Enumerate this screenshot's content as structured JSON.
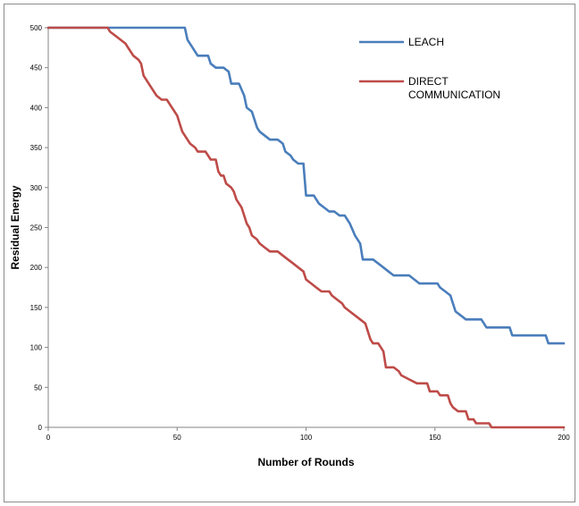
{
  "chart_data": {
    "type": "line",
    "title": "",
    "xlabel": "Number of Rounds",
    "ylabel": "Residual Energy",
    "xlim": [
      0,
      200
    ],
    "ylim": [
      0,
      500
    ],
    "xticks": [
      0,
      50,
      100,
      150,
      200
    ],
    "yticks": [
      0,
      50,
      100,
      150,
      200,
      250,
      300,
      350,
      400,
      450,
      500
    ],
    "grid": false,
    "legend_position": "top-right",
    "series": [
      {
        "name": "LEACH",
        "color": "#4a7ebb",
        "points": [
          [
            0,
            500
          ],
          [
            53,
            500
          ],
          [
            54,
            485
          ],
          [
            56,
            475
          ],
          [
            58,
            465
          ],
          [
            62,
            465
          ],
          [
            63,
            455
          ],
          [
            65,
            450
          ],
          [
            68,
            450
          ],
          [
            70,
            445
          ],
          [
            71,
            430
          ],
          [
            74,
            430
          ],
          [
            76,
            415
          ],
          [
            77,
            400
          ],
          [
            79,
            395
          ],
          [
            80,
            385
          ],
          [
            81,
            375
          ],
          [
            82,
            370
          ],
          [
            84,
            365
          ],
          [
            86,
            360
          ],
          [
            89,
            360
          ],
          [
            91,
            355
          ],
          [
            92,
            345
          ],
          [
            94,
            340
          ],
          [
            95,
            335
          ],
          [
            97,
            330
          ],
          [
            99,
            330
          ],
          [
            100,
            290
          ],
          [
            103,
            290
          ],
          [
            105,
            280
          ],
          [
            107,
            275
          ],
          [
            109,
            270
          ],
          [
            111,
            270
          ],
          [
            113,
            265
          ],
          [
            115,
            265
          ],
          [
            117,
            255
          ],
          [
            119,
            240
          ],
          [
            121,
            230
          ],
          [
            122,
            210
          ],
          [
            126,
            210
          ],
          [
            128,
            205
          ],
          [
            130,
            200
          ],
          [
            132,
            195
          ],
          [
            134,
            190
          ],
          [
            140,
            190
          ],
          [
            142,
            185
          ],
          [
            144,
            180
          ],
          [
            151,
            180
          ],
          [
            152,
            175
          ],
          [
            154,
            170
          ],
          [
            156,
            165
          ],
          [
            157,
            155
          ],
          [
            158,
            145
          ],
          [
            160,
            140
          ],
          [
            162,
            135
          ],
          [
            168,
            135
          ],
          [
            169,
            130
          ],
          [
            170,
            125
          ],
          [
            179,
            125
          ],
          [
            180,
            115
          ],
          [
            193,
            115
          ],
          [
            194,
            105
          ],
          [
            200,
            105
          ]
        ]
      },
      {
        "name": "DIRECT COMMUNICATION",
        "color": "#be4b48",
        "points": [
          [
            0,
            500
          ],
          [
            23,
            500
          ],
          [
            24,
            495
          ],
          [
            26,
            490
          ],
          [
            28,
            485
          ],
          [
            30,
            480
          ],
          [
            31,
            475
          ],
          [
            32,
            470
          ],
          [
            33,
            465
          ],
          [
            35,
            460
          ],
          [
            36,
            455
          ],
          [
            37,
            440
          ],
          [
            39,
            430
          ],
          [
            40,
            425
          ],
          [
            42,
            415
          ],
          [
            44,
            410
          ],
          [
            46,
            410
          ],
          [
            48,
            400
          ],
          [
            50,
            390
          ],
          [
            51,
            380
          ],
          [
            52,
            370
          ],
          [
            53,
            365
          ],
          [
            54,
            360
          ],
          [
            55,
            355
          ],
          [
            57,
            350
          ],
          [
            58,
            345
          ],
          [
            61,
            345
          ],
          [
            62,
            340
          ],
          [
            63,
            335
          ],
          [
            65,
            335
          ],
          [
            66,
            320
          ],
          [
            67,
            315
          ],
          [
            68,
            315
          ],
          [
            69,
            305
          ],
          [
            71,
            300
          ],
          [
            72,
            295
          ],
          [
            73,
            285
          ],
          [
            74,
            280
          ],
          [
            75,
            275
          ],
          [
            76,
            265
          ],
          [
            77,
            255
          ],
          [
            78,
            250
          ],
          [
            79,
            240
          ],
          [
            81,
            235
          ],
          [
            82,
            230
          ],
          [
            84,
            225
          ],
          [
            86,
            220
          ],
          [
            89,
            220
          ],
          [
            91,
            215
          ],
          [
            93,
            210
          ],
          [
            95,
            205
          ],
          [
            97,
            200
          ],
          [
            99,
            195
          ],
          [
            100,
            185
          ],
          [
            102,
            180
          ],
          [
            104,
            175
          ],
          [
            106,
            170
          ],
          [
            109,
            170
          ],
          [
            110,
            165
          ],
          [
            112,
            160
          ],
          [
            114,
            155
          ],
          [
            115,
            150
          ],
          [
            117,
            145
          ],
          [
            119,
            140
          ],
          [
            121,
            135
          ],
          [
            123,
            130
          ],
          [
            124,
            120
          ],
          [
            125,
            110
          ],
          [
            126,
            105
          ],
          [
            128,
            105
          ],
          [
            129,
            100
          ],
          [
            130,
            95
          ],
          [
            131,
            75
          ],
          [
            134,
            75
          ],
          [
            136,
            70
          ],
          [
            137,
            65
          ],
          [
            140,
            60
          ],
          [
            143,
            55
          ],
          [
            147,
            55
          ],
          [
            148,
            45
          ],
          [
            151,
            45
          ],
          [
            152,
            40
          ],
          [
            155,
            40
          ],
          [
            156,
            30
          ],
          [
            157,
            25
          ],
          [
            159,
            20
          ],
          [
            162,
            20
          ],
          [
            163,
            10
          ],
          [
            165,
            10
          ],
          [
            166,
            5
          ],
          [
            171,
            5
          ],
          [
            172,
            0
          ],
          [
            200,
            0
          ]
        ]
      }
    ]
  }
}
